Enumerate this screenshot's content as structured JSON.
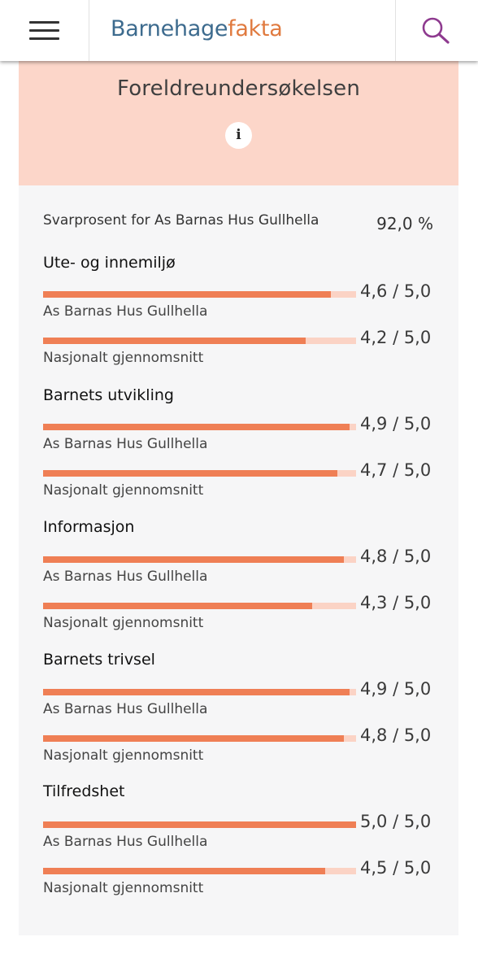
{
  "app": {
    "logo_part1": "Barnehage",
    "logo_part2": "fakta"
  },
  "header": {
    "title": "Foreldreundersøkelsen",
    "info_glyph": "i"
  },
  "response": {
    "label": "Svarprosent for As Barnas Hus Gullhella",
    "value": "92,0 %"
  },
  "categories": [
    {
      "title": "Ute- og innemiljø",
      "rows": [
        {
          "label": "As Barnas Hus Gullhella",
          "score": "4,6 / 5,0",
          "fraction": 0.92
        },
        {
          "label": "Nasjonalt gjennomsnitt",
          "score": "4,2 / 5,0",
          "fraction": 0.84
        }
      ]
    },
    {
      "title": "Barnets utvikling",
      "rows": [
        {
          "label": "As Barnas Hus Gullhella",
          "score": "4,9 / 5,0",
          "fraction": 0.98
        },
        {
          "label": "Nasjonalt gjennomsnitt",
          "score": "4,7 / 5,0",
          "fraction": 0.94
        }
      ]
    },
    {
      "title": "Informasjon",
      "rows": [
        {
          "label": "As Barnas Hus Gullhella",
          "score": "4,8 / 5,0",
          "fraction": 0.96
        },
        {
          "label": "Nasjonalt gjennomsnitt",
          "score": "4,3 / 5,0",
          "fraction": 0.86
        }
      ]
    },
    {
      "title": "Barnets trivsel",
      "rows": [
        {
          "label": "As Barnas Hus Gullhella",
          "score": "4,9 / 5,0",
          "fraction": 0.98
        },
        {
          "label": "Nasjonalt gjennomsnitt",
          "score": "4,8 / 5,0",
          "fraction": 0.96
        }
      ]
    },
    {
      "title": "Tilfredshet",
      "rows": [
        {
          "label": "As Barnas Hus Gullhella",
          "score": "5,0 / 5,0",
          "fraction": 1.0
        },
        {
          "label": "Nasjonalt gjennomsnitt",
          "score": "4,5 / 5,0",
          "fraction": 0.9
        }
      ]
    }
  ],
  "colors": {
    "header_band": "#fcd6c9",
    "bar_fill": "#ef7f55",
    "bar_track": "#fbd3c5",
    "logo_primary": "#3d6b8e",
    "logo_accent": "#e07a3f",
    "search_icon": "#8e3a8f"
  },
  "icons": {
    "menu": "hamburger-menu-icon",
    "search": "magnifier-search-icon",
    "info": "info-circle-icon"
  }
}
